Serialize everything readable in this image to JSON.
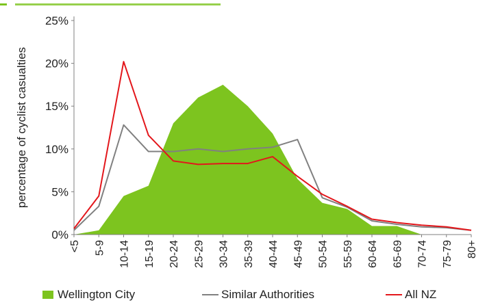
{
  "chart_data": {
    "type": "area",
    "categories": [
      "<5",
      "5-9",
      "10-14",
      "15-19",
      "20-24",
      "25-29",
      "30-34",
      "35-39",
      "40-44",
      "45-49",
      "50-54",
      "55-59",
      "60-64",
      "65-69",
      "70-74",
      "75-79",
      "80+"
    ],
    "ylabel": "percentage of cyclist casualties",
    "ylim": [
      0,
      25
    ],
    "yticks": [
      "0%",
      "5%",
      "10%",
      "15%",
      "20%",
      "25%"
    ],
    "grid": false,
    "legend_position": "bottom",
    "series": [
      {
        "name": "Wellington City",
        "kind": "area",
        "color": "#7dc41f",
        "values": [
          0,
          0.5,
          4.5,
          5.7,
          13,
          16,
          17.5,
          15,
          11.8,
          6.5,
          3.7,
          3,
          1.0,
          1.0,
          0,
          0,
          0
        ]
      },
      {
        "name": "Similar Authorities",
        "kind": "line",
        "color": "#808080",
        "values": [
          0.5,
          3.3,
          12.8,
          9.7,
          9.7,
          10.0,
          9.7,
          10.0,
          10.2,
          11.1,
          4.3,
          3.2,
          1.6,
          1.2,
          0.9,
          0.8,
          0.5
        ]
      },
      {
        "name": "All NZ",
        "kind": "line",
        "color": "#e3161b",
        "values": [
          0.7,
          4.5,
          20.2,
          11.6,
          8.6,
          8.2,
          8.3,
          8.3,
          9.1,
          6.8,
          4.7,
          3.3,
          1.8,
          1.4,
          1.1,
          0.9,
          0.5
        ]
      }
    ]
  },
  "colors": {
    "plot_background": "#ffffff",
    "axis": "#7f7f7f",
    "text": "#222222",
    "title_strip": "#7dc41f"
  }
}
